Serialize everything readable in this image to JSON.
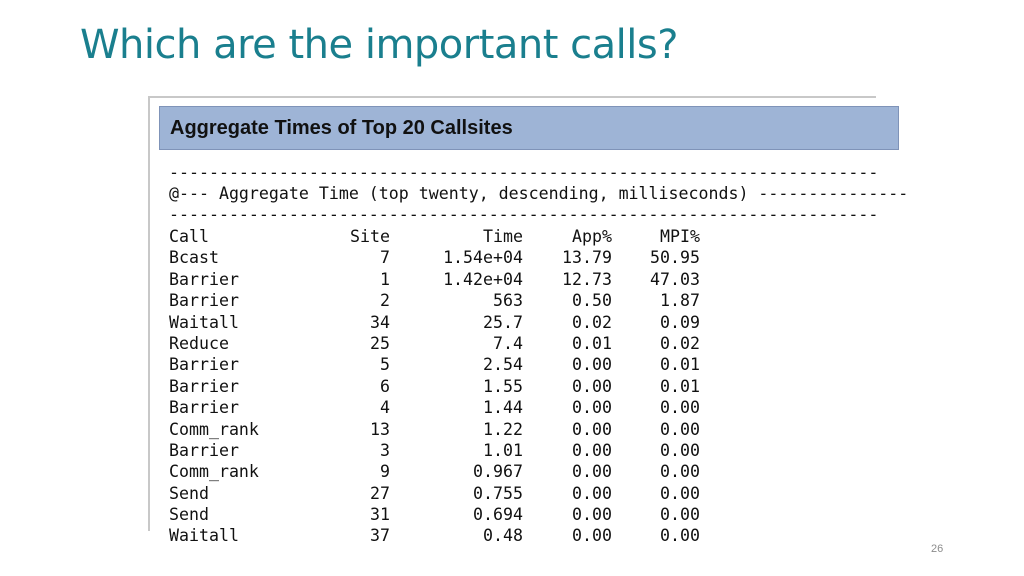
{
  "slide": {
    "title": "Which are the important calls?",
    "page_number": "26"
  },
  "report": {
    "header": "Aggregate Times of Top 20 Callsites",
    "dash_line": "-----------------------------------------------------------------------",
    "aggregate_line": "@--- Aggregate Time (top twenty, descending, milliseconds) ---------------",
    "columns": [
      "Call",
      "Site",
      "Time",
      "App%",
      "MPI%"
    ],
    "rows": [
      [
        "Bcast",
        "7",
        "1.54e+04",
        "13.79",
        "50.95"
      ],
      [
        "Barrier",
        "1",
        "1.42e+04",
        "12.73",
        "47.03"
      ],
      [
        "Barrier",
        "2",
        "563",
        "0.50",
        "1.87"
      ],
      [
        "Waitall",
        "34",
        "25.7",
        "0.02",
        "0.09"
      ],
      [
        "Reduce",
        "25",
        "7.4",
        "0.01",
        "0.02"
      ],
      [
        "Barrier",
        "5",
        "2.54",
        "0.00",
        "0.01"
      ],
      [
        "Barrier",
        "6",
        "1.55",
        "0.00",
        "0.01"
      ],
      [
        "Barrier",
        "4",
        "1.44",
        "0.00",
        "0.00"
      ],
      [
        "Comm_rank",
        "13",
        "1.22",
        "0.00",
        "0.00"
      ],
      [
        "Barrier",
        "3",
        "1.01",
        "0.00",
        "0.00"
      ],
      [
        "Comm_rank",
        "9",
        "0.967",
        "0.00",
        "0.00"
      ],
      [
        "Send",
        "27",
        "0.755",
        "0.00",
        "0.00"
      ],
      [
        "Send",
        "31",
        "0.694",
        "0.00",
        "0.00"
      ],
      [
        "Waitall",
        "37",
        "0.48",
        "0.00",
        "0.00"
      ]
    ]
  }
}
